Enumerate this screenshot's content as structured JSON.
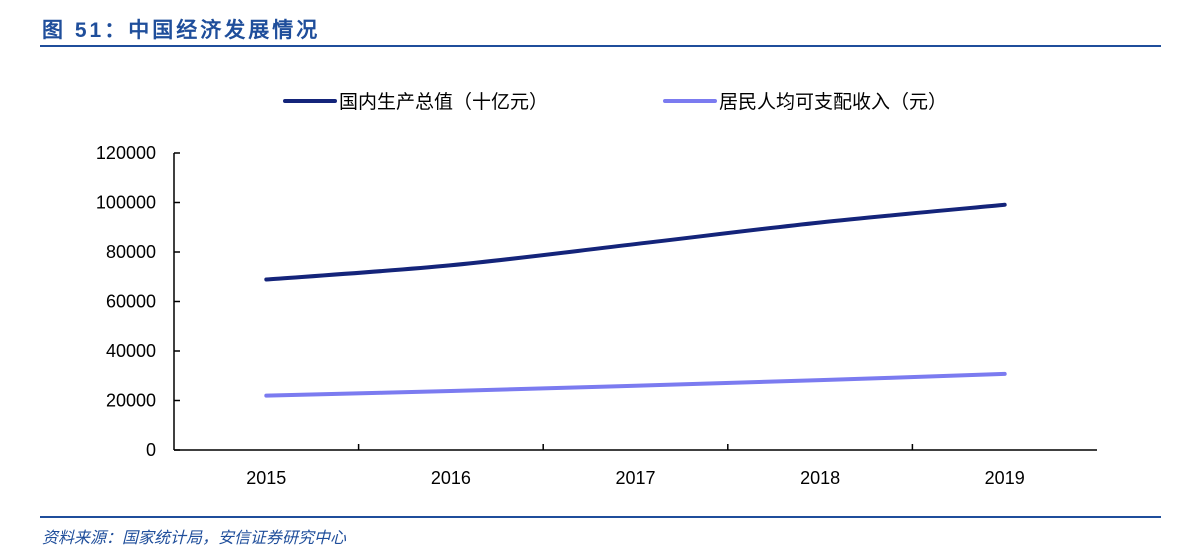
{
  "header": {
    "title": "图 51：中国经济发展情况"
  },
  "footer": {
    "source": "资料来源：国家统计局，安信证券研究中心"
  },
  "chart_data": {
    "type": "line",
    "categories": [
      "2015",
      "2016",
      "2017",
      "2018",
      "2019"
    ],
    "series": [
      {
        "name": "国内生产总值（十亿元）",
        "values": [
          68886,
          74640,
          83204,
          91928,
          99087
        ],
        "color": "#14247a"
      },
      {
        "name": "居民人均可支配收入（元）",
        "values": [
          21966,
          23821,
          25974,
          28228,
          30733
        ],
        "color": "#7b7bf0"
      }
    ],
    "ylim": [
      0,
      120000
    ],
    "yticks": [
      "0",
      "20000",
      "40000",
      "60000",
      "80000",
      "100000",
      "120000"
    ],
    "grid": false,
    "legend": "top"
  }
}
